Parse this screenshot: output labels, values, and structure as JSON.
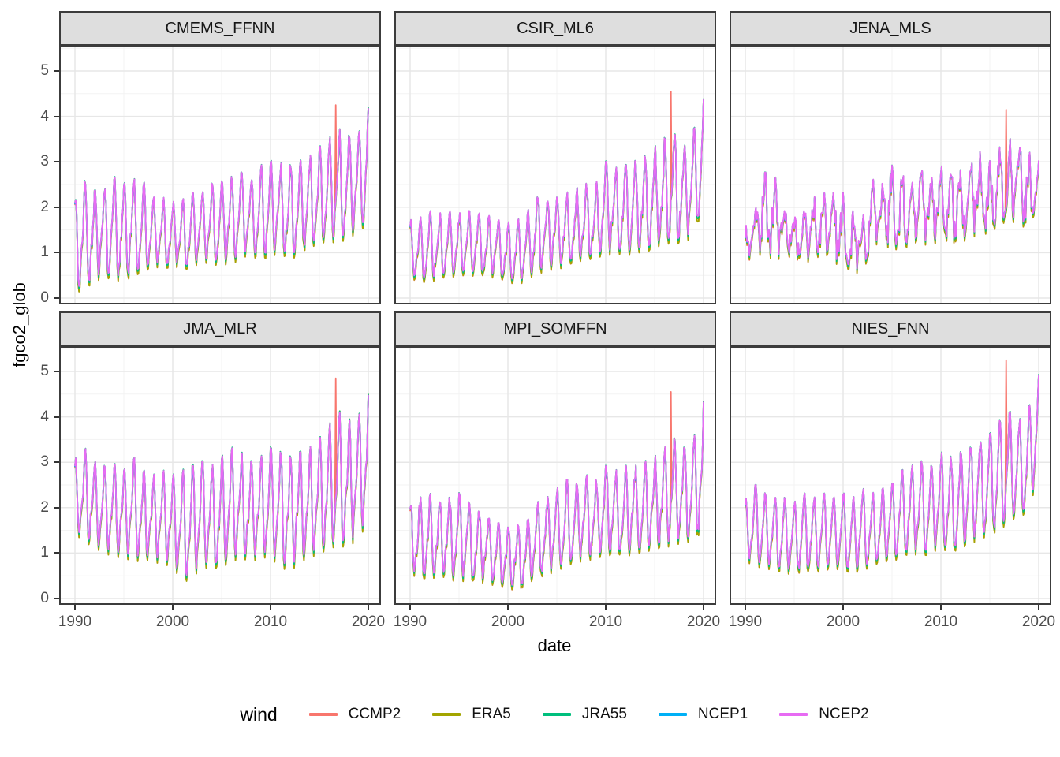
{
  "figure": {
    "background": "#FFFFFF"
  },
  "axes": {
    "x_title": "date",
    "y_title": "fgco2_glob",
    "x_tick_labels": [
      "1990",
      "2000",
      "2010",
      "2020"
    ],
    "y_tick_labels": [
      "0",
      "1",
      "2",
      "3",
      "4",
      "5"
    ],
    "tick_label_color": "#4D4D4D",
    "panel_border_color": "#3c3c3c",
    "major_grid_color": "#E7E7E7",
    "minor_grid_color": "#F3F3F3",
    "strip_background": "#DEDEDE"
  },
  "legend": {
    "title": "wind",
    "position": "bottom",
    "entries": [
      {
        "label": "CCMP2",
        "color": "#F8766D"
      },
      {
        "label": "ERA5",
        "color": "#A3A500"
      },
      {
        "label": "JRA55",
        "color": "#00BF7D"
      },
      {
        "label": "NCEP1",
        "color": "#00B0F6"
      },
      {
        "label": "NCEP2",
        "color": "#E76BF3"
      }
    ]
  },
  "chart_data": {
    "type": "line",
    "facet_grid": {
      "rows": 2,
      "cols": 3
    },
    "xlabel": "date",
    "ylabel": "fgco2_glob",
    "x_ticks": [
      1990,
      2000,
      2010,
      2020
    ],
    "x_minor_ticks": [
      1995,
      2005,
      2015
    ],
    "y_ticks": [
      0,
      1,
      2,
      3,
      4,
      5
    ],
    "y_minor_ticks": [
      0.5,
      1.5,
      2.5,
      3.5,
      4.5,
      5.5
    ],
    "x_range": [
      1988.4,
      2021.3
    ],
    "y_range": [
      -0.15,
      5.7
    ],
    "time_resolution": "monthly",
    "seed": 42,
    "series": [
      {
        "name": "CCMP2",
        "color": "#F8766D",
        "amp": 1.04,
        "offset": -0.06
      },
      {
        "name": "ERA5",
        "color": "#A3A500",
        "amp": 1.06,
        "offset": -0.04
      },
      {
        "name": "JRA55",
        "color": "#00BF7D",
        "amp": 1.03,
        "offset": 0.0
      },
      {
        "name": "NCEP1",
        "color": "#00B0F6",
        "amp": 0.985,
        "offset": 0.01
      },
      {
        "name": "NCEP2",
        "color": "#E76BF3",
        "amp": 1.0,
        "offset": 0.02
      }
    ],
    "envelope_years": [
      1990,
      1991,
      1992,
      1993,
      1994,
      1995,
      1996,
      1997,
      1998,
      1999,
      2000,
      2001,
      2002,
      2003,
      2004,
      2005,
      2006,
      2007,
      2008,
      2009,
      2010,
      2011,
      2012,
      2013,
      2014,
      2015,
      2016,
      2017,
      2018,
      2019,
      2020
    ],
    "panels": [
      {
        "name": "CMEMS_FFNN",
        "noise": 0.15,
        "h2": 0.3,
        "seasonal_max": [
          2.1,
          2.55,
          2.35,
          2.35,
          2.65,
          2.5,
          2.6,
          2.55,
          2.2,
          2.2,
          2.1,
          2.15,
          2.3,
          2.3,
          2.5,
          2.55,
          2.65,
          2.75,
          2.55,
          2.9,
          3.0,
          2.95,
          2.9,
          3.0,
          3.1,
          3.3,
          3.5,
          3.7,
          3.55,
          3.6,
          4.15
        ],
        "seasonal_min": [
          0.2,
          0.3,
          0.45,
          0.55,
          0.5,
          0.45,
          0.6,
          0.65,
          0.8,
          0.7,
          0.8,
          0.7,
          0.75,
          0.9,
          0.8,
          0.85,
          0.8,
          1.0,
          1.0,
          0.95,
          1.0,
          1.1,
          0.9,
          1.1,
          1.2,
          1.3,
          1.35,
          1.3,
          1.45,
          1.5,
          1.8
        ],
        "ccmp2_spike": {
          "x": 2016.67,
          "y": 4.25
        }
      },
      {
        "name": "CSIR_ML6",
        "noise": 0.18,
        "h2": 0.3,
        "seasonal_max": [
          1.7,
          1.75,
          1.9,
          1.85,
          1.9,
          1.85,
          1.9,
          1.85,
          1.8,
          1.7,
          1.65,
          1.7,
          1.9,
          2.2,
          2.1,
          2.2,
          2.3,
          2.4,
          2.5,
          2.5,
          3.0,
          2.85,
          2.9,
          3.0,
          3.1,
          3.3,
          3.5,
          3.6,
          3.3,
          3.7,
          4.35
        ],
        "seasonal_min": [
          0.5,
          0.45,
          0.4,
          0.55,
          0.5,
          0.6,
          0.55,
          0.6,
          0.55,
          0.5,
          0.45,
          0.35,
          0.5,
          0.6,
          0.7,
          0.7,
          0.8,
          0.9,
          0.9,
          1.0,
          1.0,
          1.1,
          1.0,
          1.1,
          1.1,
          1.2,
          1.3,
          1.3,
          1.3,
          1.5,
          2.1
        ],
        "ccmp2_spike": {
          "x": 2016.67,
          "y": 4.55
        }
      },
      {
        "name": "JENA_MLS",
        "noise": 0.6,
        "h2": 0.15,
        "seasonal_max": [
          1.55,
          1.9,
          2.75,
          2.7,
          1.9,
          1.75,
          1.9,
          2.2,
          2.3,
          2.3,
          2.3,
          1.9,
          1.75,
          2.6,
          2.5,
          2.9,
          2.7,
          2.5,
          2.8,
          2.6,
          2.9,
          2.7,
          2.8,
          2.9,
          3.2,
          3.0,
          3.3,
          3.5,
          3.3,
          3.2,
          3.0
        ],
        "seasonal_min": [
          0.85,
          1.0,
          1.05,
          0.9,
          1.0,
          0.95,
          0.85,
          0.9,
          1.1,
          0.85,
          0.8,
          0.65,
          0.6,
          1.3,
          1.2,
          1.2,
          1.1,
          1.3,
          1.3,
          1.2,
          1.4,
          1.3,
          1.3,
          1.4,
          1.5,
          1.5,
          1.7,
          1.8,
          1.7,
          1.6,
          2.2
        ],
        "ccmp2_spike": {
          "x": 2016.67,
          "y": 4.15
        }
      },
      {
        "name": "JMA_MLR",
        "noise": 0.12,
        "h2": 0.35,
        "seasonal_max": [
          3.05,
          3.3,
          3.0,
          2.9,
          2.95,
          2.8,
          3.1,
          2.8,
          2.7,
          2.8,
          2.7,
          2.8,
          2.9,
          3.0,
          2.9,
          3.1,
          3.3,
          3.2,
          3.0,
          3.1,
          3.3,
          3.2,
          3.1,
          3.2,
          3.3,
          3.5,
          3.8,
          4.1,
          3.9,
          4.0,
          4.45
        ],
        "seasonal_min": [
          1.5,
          1.35,
          1.2,
          1.1,
          1.0,
          1.0,
          0.9,
          0.95,
          0.9,
          0.85,
          0.8,
          0.45,
          0.55,
          0.8,
          0.75,
          0.8,
          0.9,
          1.0,
          0.9,
          1.0,
          1.0,
          0.8,
          0.7,
          0.9,
          1.0,
          1.1,
          1.2,
          1.3,
          1.2,
          1.5,
          1.7
        ],
        "ccmp2_spike": {
          "x": 2016.67,
          "y": 4.85
        }
      },
      {
        "name": "MPI_SOMFFN",
        "noise": 0.18,
        "h2": 0.3,
        "seasonal_max": [
          2.0,
          2.2,
          2.3,
          2.1,
          2.2,
          2.3,
          2.1,
          1.9,
          1.75,
          1.65,
          1.55,
          1.6,
          1.7,
          2.1,
          2.2,
          2.4,
          2.6,
          2.5,
          2.7,
          2.6,
          2.9,
          2.8,
          2.9,
          2.9,
          3.0,
          3.1,
          3.3,
          3.5,
          3.3,
          3.5,
          4.3
        ],
        "seasonal_min": [
          0.6,
          0.55,
          0.5,
          0.6,
          0.5,
          0.45,
          0.5,
          0.45,
          0.4,
          0.35,
          0.3,
          0.25,
          0.4,
          0.55,
          0.6,
          0.7,
          0.8,
          0.9,
          0.9,
          1.0,
          1.0,
          1.1,
          1.0,
          1.1,
          1.1,
          1.2,
          1.2,
          1.3,
          1.3,
          1.4,
          1.6
        ],
        "ccmp2_spike": {
          "x": 2016.67,
          "y": 4.55
        }
      },
      {
        "name": "NIES_FNN",
        "noise": 0.12,
        "h2": 0.25,
        "seasonal_max": [
          2.15,
          2.5,
          2.3,
          2.2,
          2.2,
          2.1,
          2.3,
          2.2,
          2.3,
          2.2,
          2.3,
          2.2,
          2.4,
          2.3,
          2.4,
          2.5,
          2.8,
          2.9,
          3.0,
          2.9,
          3.2,
          3.1,
          3.2,
          3.3,
          3.4,
          3.6,
          3.9,
          4.1,
          3.9,
          4.2,
          4.9
        ],
        "seasonal_min": [
          0.9,
          0.8,
          0.75,
          0.7,
          0.65,
          0.6,
          0.7,
          0.65,
          0.7,
          0.75,
          0.7,
          0.65,
          0.7,
          0.8,
          0.9,
          0.9,
          1.0,
          1.1,
          1.0,
          1.1,
          1.2,
          1.1,
          1.2,
          1.3,
          1.4,
          1.5,
          1.6,
          1.8,
          1.9,
          2.0,
          2.9
        ],
        "ccmp2_spike": {
          "x": 2016.67,
          "y": 5.25
        }
      }
    ]
  }
}
